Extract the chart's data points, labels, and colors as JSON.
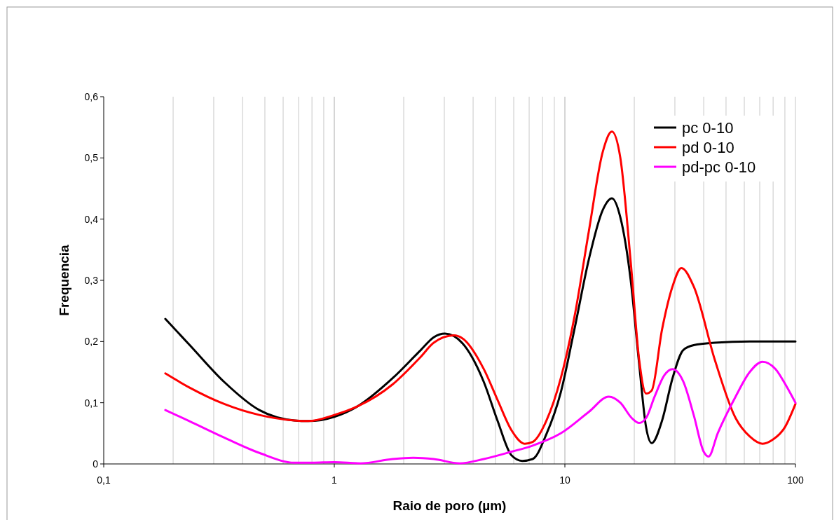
{
  "chart_data": {
    "type": "line",
    "xlabel": "Raio de poro (µm)",
    "ylabel": "Frequencia",
    "log": "x",
    "grid": "x",
    "legend": "top right",
    "marker": "none",
    "line_style": "solid",
    "xlim": [
      0.1,
      100
    ],
    "xticks": [
      {
        "value": 0.1,
        "label": "0,1"
      },
      1,
      10,
      100
    ],
    "ylim": [
      0,
      0.6
    ],
    "yticks": [
      0,
      {
        "value": 0.1,
        "label": "0,1"
      },
      {
        "value": 0.2,
        "label": "0,2"
      },
      {
        "value": 0.3,
        "label": "0,3"
      },
      {
        "value": 0.4,
        "label": "0,4"
      },
      {
        "value": 0.5,
        "label": "0,5"
      },
      {
        "value": 0.6,
        "label": "0,6"
      }
    ],
    "series": [
      {
        "name": "pc 0-10",
        "color": "#000000",
        "x": [
          0.185,
          0.235,
          0.333,
          0.473,
          0.671,
          0.77,
          1,
          1.26,
          1.79,
          2.37,
          2.7,
          3.02,
          3.6,
          4.45,
          5.1,
          5.87,
          6.53,
          7.25,
          8.3,
          9.6,
          11,
          12.7,
          14.6,
          16,
          17.4,
          19.3,
          21,
          22.5,
          23.8,
          26.4,
          29.3,
          32.6,
          36.2,
          44.7,
          63.3,
          100
        ],
        "values": [
          0.237,
          0.195,
          0.134,
          0.088,
          0.071,
          0.07,
          0.077,
          0.094,
          0.14,
          0.186,
          0.207,
          0.213,
          0.197,
          0.134,
          0.071,
          0.014,
          0.005,
          0.008,
          0.048,
          0.117,
          0.22,
          0.334,
          0.415,
          0.434,
          0.403,
          0.3,
          0.163,
          0.06,
          0.034,
          0.071,
          0.14,
          0.186,
          0.194,
          0.198,
          0.2,
          0.2
        ]
      },
      {
        "name": "pd 0-10",
        "color": "#ff0000",
        "x": [
          0.185,
          0.235,
          0.333,
          0.473,
          0.671,
          0.77,
          1,
          1.26,
          1.79,
          2.37,
          2.7,
          3.3,
          3.6,
          4.45,
          5.1,
          5.87,
          6.7,
          7.25,
          8.3,
          9.6,
          11,
          12.7,
          14.6,
          16,
          17.4,
          19.3,
          21,
          22.5,
          23.8,
          26.4,
          29.3,
          32,
          36.2,
          44.7,
          55,
          63.3,
          72,
          80,
          90,
          100
        ],
        "values": [
          0.148,
          0.125,
          0.098,
          0.08,
          0.071,
          0.07,
          0.08,
          0.094,
          0.13,
          0.175,
          0.198,
          0.21,
          0.205,
          0.155,
          0.105,
          0.055,
          0.033,
          0.036,
          0.07,
          0.14,
          0.24,
          0.38,
          0.51,
          0.543,
          0.5,
          0.33,
          0.17,
          0.115,
          0.12,
          0.22,
          0.29,
          0.32,
          0.29,
          0.17,
          0.075,
          0.045,
          0.033,
          0.04,
          0.06,
          0.098
        ]
      },
      {
        "name": "pd-pc 0-10",
        "color": "#ff00ff",
        "x": [
          0.185,
          0.235,
          0.333,
          0.473,
          0.671,
          0.8,
          1,
          1.3,
          1.79,
          2.2,
          2.7,
          3.5,
          4.45,
          5.87,
          7.25,
          9.6,
          12.7,
          15.5,
          17.4,
          19.5,
          21,
          22.5,
          24.5,
          27,
          29.3,
          32.6,
          36.2,
          40,
          42,
          46,
          55,
          63.3,
          72,
          82,
          92,
          100
        ],
        "values": [
          0.088,
          0.07,
          0.043,
          0.018,
          0.002,
          0.002,
          0.003,
          0.001,
          0.008,
          0.01,
          0.008,
          0.001,
          0.008,
          0.02,
          0.03,
          0.05,
          0.085,
          0.11,
          0.1,
          0.075,
          0.067,
          0.075,
          0.11,
          0.145,
          0.155,
          0.135,
          0.08,
          0.02,
          0.012,
          0.05,
          0.11,
          0.15,
          0.167,
          0.155,
          0.125,
          0.1
        ]
      }
    ]
  }
}
